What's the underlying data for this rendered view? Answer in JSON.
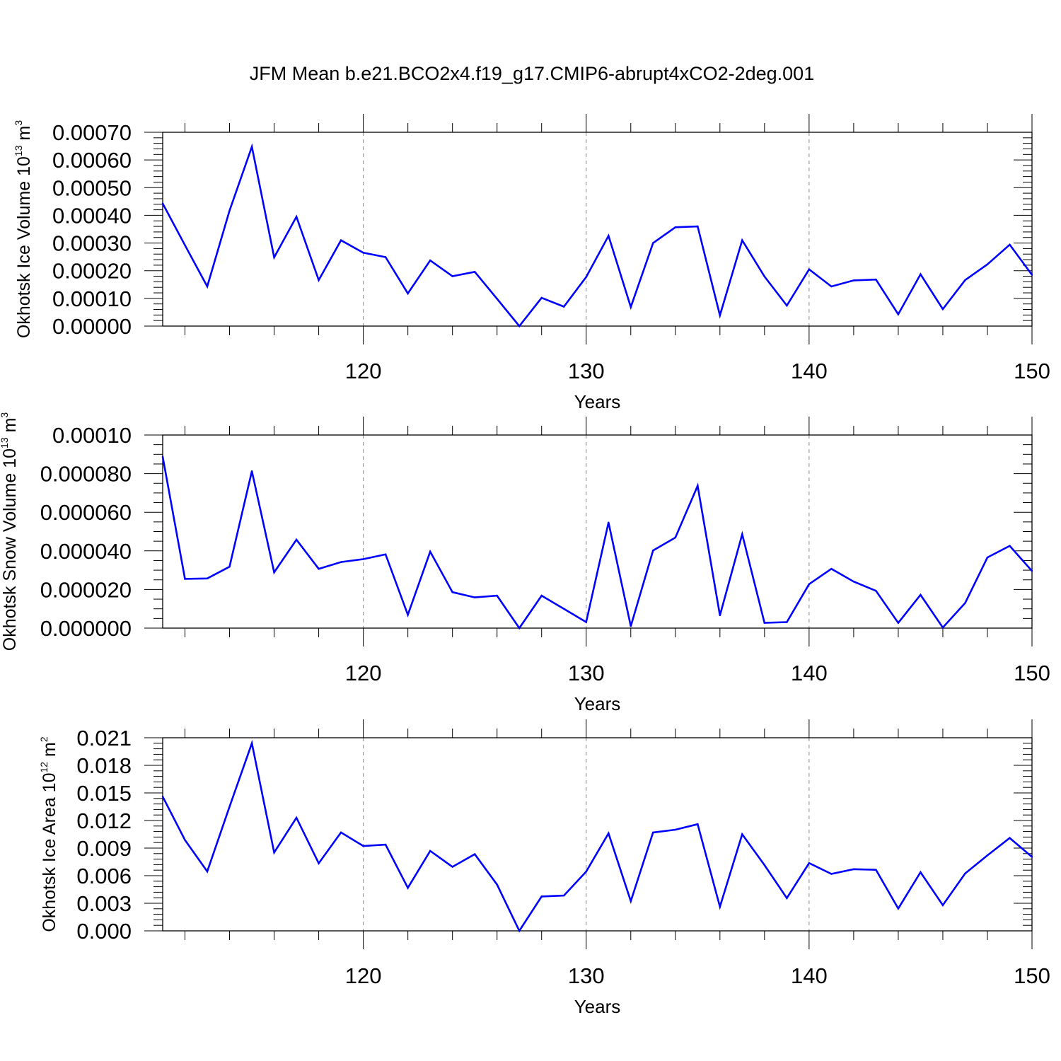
{
  "figure": {
    "title": "JFM Mean b.e21.BCO2x4.f19_g17.CMIP6-abrupt4xCO2-2deg.001"
  },
  "chart_data": [
    {
      "type": "line",
      "title": "",
      "xlabel": "Years",
      "ylabel": "Okhotsk Ice Volume 10",
      "ylabel_exponent": "13",
      "ylabel_unit": "m",
      "ylabel_unit_exponent": "3",
      "xlim": [
        111,
        150
      ],
      "ylim": [
        0,
        0.0007
      ],
      "x_ticks": [
        "120",
        "130",
        "140",
        "150"
      ],
      "y_ticks": [
        "0.00000",
        "0.00010",
        "0.00020",
        "0.00030",
        "0.00040",
        "0.00050",
        "0.00060",
        "0.00070"
      ],
      "grid": "vertical dashed at major x ticks",
      "color": "#0000ff",
      "series": [
        {
          "x": [
            111,
            112,
            113,
            114,
            115,
            116,
            117,
            118,
            119,
            120,
            121,
            122,
            123,
            124,
            125,
            126,
            127,
            128,
            129,
            130,
            131,
            132,
            133,
            134,
            135,
            136,
            137,
            138,
            139,
            140,
            141,
            142,
            143,
            144,
            145,
            146,
            147,
            148,
            149,
            150
          ],
          "values": [
            0.000443,
            0.000292,
            0.000143,
            0.000417,
            0.000648,
            0.000248,
            0.000395,
            0.000166,
            0.00031,
            0.000265,
            0.000249,
            0.000118,
            0.000237,
            0.00018,
            0.000196,
            9.85e-05,
            0.0,
            0.000102,
            7.02e-05,
            0.000177,
            0.000326,
            6.88e-05,
            0.0003,
            0.000357,
            0.00036,
            3.89e-05,
            0.00031,
            0.000179,
            7.4e-05,
            0.000205,
            0.000143,
            0.000165,
            0.000168,
            4.27e-05,
            0.000187,
            6.13e-05,
            0.000166,
            0.000223,
            0.000294,
            0.000185
          ]
        }
      ]
    },
    {
      "type": "line",
      "title": "",
      "xlabel": "Years",
      "ylabel": "Okhotsk Snow Volume 10",
      "ylabel_exponent": "13",
      "ylabel_unit": "m",
      "ylabel_unit_exponent": "3",
      "xlim": [
        111,
        150
      ],
      "ylim": [
        0,
        0.0001
      ],
      "x_ticks": [
        "120",
        "130",
        "140",
        "150"
      ],
      "y_ticks": [
        "0.000000",
        "0.000020",
        "0.000040",
        "0.000060",
        "0.000080",
        "0.00010"
      ],
      "grid": "vertical dashed at major x ticks",
      "color": "#0000ff",
      "series": [
        {
          "x": [
            111,
            112,
            113,
            114,
            115,
            116,
            117,
            118,
            119,
            120,
            121,
            122,
            123,
            124,
            125,
            126,
            127,
            128,
            129,
            130,
            131,
            132,
            133,
            134,
            135,
            136,
            137,
            138,
            139,
            140,
            141,
            142,
            143,
            144,
            145,
            146,
            147,
            148,
            149,
            150
          ],
          "values": [
            8.88e-05,
            2.55e-05,
            2.57e-05,
            3.18e-05,
            8.13e-05,
            2.89e-05,
            4.58e-05,
            3.07e-05,
            3.42e-05,
            3.57e-05,
            3.82e-05,
            6.9e-06,
            3.96e-05,
            1.86e-05,
            1.59e-05,
            1.68e-05,
            0.0,
            1.68e-05,
            1e-05,
            3.1e-06,
            5.47e-05,
            1e-06,
            4.02e-05,
            4.69e-05,
            7.37e-05,
            6.6e-06,
            4.86e-05,
            2.7e-06,
            3.1e-06,
            2.28e-05,
            3.07e-05,
            2.41e-05,
            1.93e-05,
            2.7e-06,
            1.72e-05,
            3e-07,
            1.3e-05,
            3.66e-05,
            4.26e-05,
            2.96e-05
          ]
        }
      ]
    },
    {
      "type": "line",
      "title": "",
      "xlabel": "Years",
      "ylabel": "Okhotsk Ice Area 10",
      "ylabel_exponent": "12",
      "ylabel_unit": "m",
      "ylabel_unit_exponent": "2",
      "xlim": [
        111,
        150
      ],
      "ylim": [
        0,
        0.021
      ],
      "x_ticks": [
        "120",
        "130",
        "140",
        "150"
      ],
      "y_ticks": [
        "0.000",
        "0.003",
        "0.006",
        "0.009",
        "0.012",
        "0.015",
        "0.018",
        "0.021"
      ],
      "grid": "vertical dashed at major x ticks",
      "color": "#0000ff",
      "series": [
        {
          "x": [
            111,
            112,
            113,
            114,
            115,
            116,
            117,
            118,
            119,
            120,
            121,
            122,
            123,
            124,
            125,
            126,
            127,
            128,
            129,
            130,
            131,
            132,
            133,
            134,
            135,
            136,
            137,
            138,
            139,
            140,
            141,
            142,
            143,
            144,
            145,
            146,
            147,
            148,
            149,
            150
          ],
          "values": [
            0.0146,
            0.00988,
            0.00646,
            0.0135,
            0.0204,
            0.00852,
            0.0123,
            0.00735,
            0.0107,
            0.00923,
            0.00938,
            0.00468,
            0.00869,
            0.00696,
            0.00834,
            0.00503,
            0.0,
            0.00374,
            0.00384,
            0.00645,
            0.0106,
            0.00323,
            0.0107,
            0.011,
            0.0116,
            0.00262,
            0.0105,
            0.00715,
            0.00356,
            0.00737,
            0.00619,
            0.00671,
            0.00664,
            0.00242,
            0.00638,
            0.00279,
            0.00624,
            0.00821,
            0.0101,
            0.00804
          ]
        }
      ]
    }
  ]
}
